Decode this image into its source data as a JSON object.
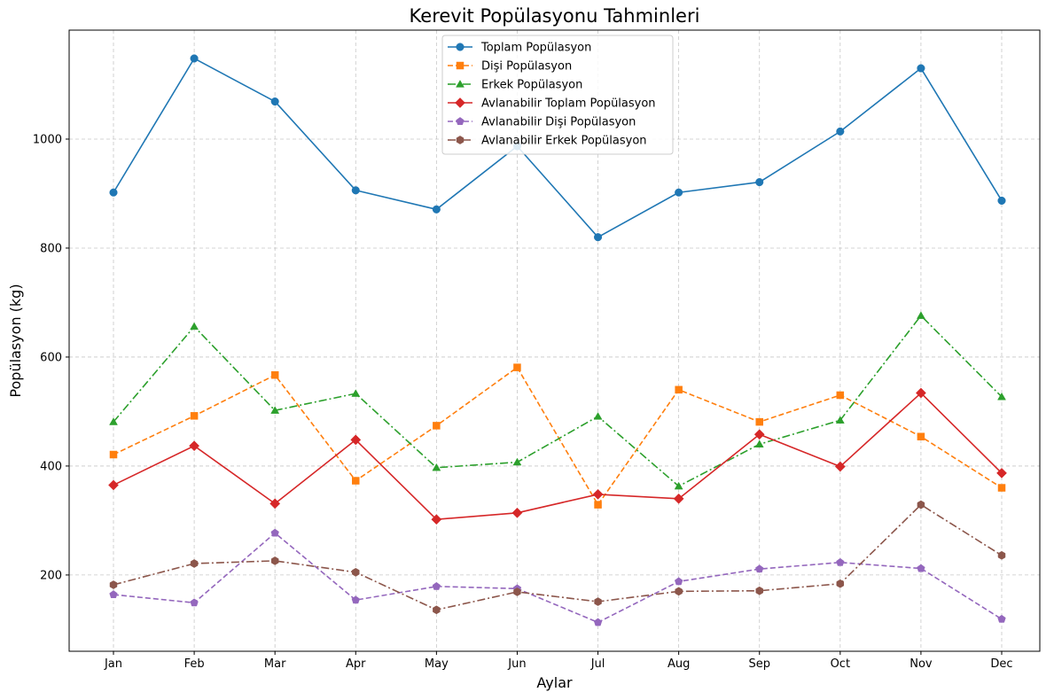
{
  "chart_data": {
    "type": "line",
    "title": "Kerevit Popülasyonu Tahminleri",
    "xlabel": "Aylar",
    "ylabel": "Popülasyon (kg)",
    "categories": [
      "Jan",
      "Feb",
      "Mar",
      "Apr",
      "May",
      "Jun",
      "Jul",
      "Aug",
      "Sep",
      "Oct",
      "Nov",
      "Dec"
    ],
    "ylim": [
      60,
      1200
    ],
    "yticks": [
      200,
      400,
      600,
      800,
      1000
    ],
    "grid": true,
    "legend_position": "top-center",
    "series": [
      {
        "name": "Toplam Popülasyon",
        "color": "#1f77b4",
        "marker": "circle",
        "linestyle": "solid",
        "values": [
          902,
          1148,
          1069,
          906,
          871,
          987,
          820,
          902,
          921,
          1014,
          1130,
          887
        ]
      },
      {
        "name": "Dişi Popülasyon",
        "color": "#ff7f0e",
        "marker": "square",
        "linestyle": "dashed",
        "values": [
          421,
          492,
          567,
          373,
          474,
          581,
          329,
          540,
          481,
          530,
          454,
          360
        ]
      },
      {
        "name": "Erkek Popülasyon",
        "color": "#2ca02c",
        "marker": "triangle",
        "linestyle": "dashdot",
        "values": [
          481,
          656,
          502,
          533,
          397,
          407,
          491,
          363,
          440,
          484,
          676,
          527
        ]
      },
      {
        "name": "Avlanabilir Toplam Popülasyon",
        "color": "#d62728",
        "marker": "diamond",
        "linestyle": "solid",
        "values": [
          365,
          437,
          331,
          448,
          302,
          314,
          348,
          340,
          458,
          399,
          534,
          387
        ]
      },
      {
        "name": "Avlanabilir Dişi Popülasyon",
        "color": "#9467bd",
        "marker": "pentagon",
        "linestyle": "dashed",
        "values": [
          164,
          149,
          277,
          154,
          179,
          175,
          113,
          188,
          211,
          223,
          212,
          119
        ]
      },
      {
        "name": "Avlanabilir Erkek Popülasyon",
        "color": "#8c564b",
        "marker": "hexagon",
        "linestyle": "dashdot",
        "values": [
          182,
          221,
          226,
          205,
          136,
          169,
          151,
          170,
          171,
          184,
          329,
          236
        ]
      }
    ]
  }
}
